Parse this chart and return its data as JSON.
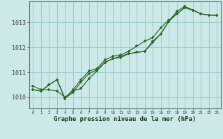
{
  "bg_color": "#cce8e8",
  "grid_color": "#99cccc",
  "line_color": "#2d6a2d",
  "marker_color": "#2d6a2d",
  "xlabel": "Graphe pression niveau de la mer (hPa)",
  "xlabel_color": "#1a3a1a",
  "ylabel_ticks": [
    1010,
    1011,
    1012,
    1013
  ],
  "ylim": [
    1009.55,
    1013.85
  ],
  "xlim": [
    -0.5,
    23.5
  ],
  "series1": {
    "x": [
      0,
      1,
      2,
      3,
      4,
      5,
      6,
      7,
      8,
      9,
      10,
      11,
      12,
      13,
      14,
      15,
      16,
      17,
      18,
      19,
      20,
      21,
      22,
      23
    ],
    "y": [
      1010.45,
      1010.3,
      1010.3,
      1010.25,
      1010.0,
      1010.25,
      1010.35,
      1010.75,
      1011.05,
      1011.4,
      1011.55,
      1011.6,
      1011.75,
      1011.8,
      1011.85,
      1012.2,
      1012.55,
      1013.05,
      1013.45,
      1013.65,
      1013.5,
      1013.35,
      1013.3,
      1013.3
    ]
  },
  "series2": {
    "x": [
      0,
      1,
      2,
      3,
      4,
      5,
      6,
      7,
      8,
      9,
      10,
      11,
      12,
      13,
      14,
      15,
      16,
      17,
      18,
      19,
      20,
      21,
      22,
      23
    ],
    "y": [
      1010.3,
      1010.25,
      1010.5,
      1010.7,
      1009.95,
      1010.2,
      1010.6,
      1010.95,
      1011.1,
      1011.4,
      1011.55,
      1011.65,
      1011.75,
      1011.8,
      1011.85,
      1012.25,
      1012.55,
      1013.05,
      1013.35,
      1013.6,
      1013.5,
      1013.35,
      1013.3,
      1013.3
    ]
  },
  "series3": {
    "x": [
      0,
      1,
      2,
      3,
      4,
      5,
      6,
      7,
      8,
      9,
      10,
      11,
      12,
      13,
      14,
      15,
      16,
      17,
      18,
      19,
      20,
      21,
      22,
      23
    ],
    "y": [
      1010.3,
      1010.25,
      1010.5,
      1010.7,
      1009.95,
      1010.3,
      1010.7,
      1011.05,
      1011.15,
      1011.5,
      1011.65,
      1011.7,
      1011.85,
      1012.05,
      1012.25,
      1012.4,
      1012.8,
      1013.1,
      1013.35,
      1013.6,
      1013.5,
      1013.35,
      1013.3,
      1013.3
    ]
  },
  "xtick_labels": [
    "0",
    "1",
    "2",
    "3",
    "4",
    "5",
    "6",
    "7",
    "8",
    "9",
    "10",
    "11",
    "12",
    "13",
    "14",
    "15",
    "16",
    "17",
    "18",
    "19",
    "20",
    "21",
    "22",
    "23"
  ]
}
